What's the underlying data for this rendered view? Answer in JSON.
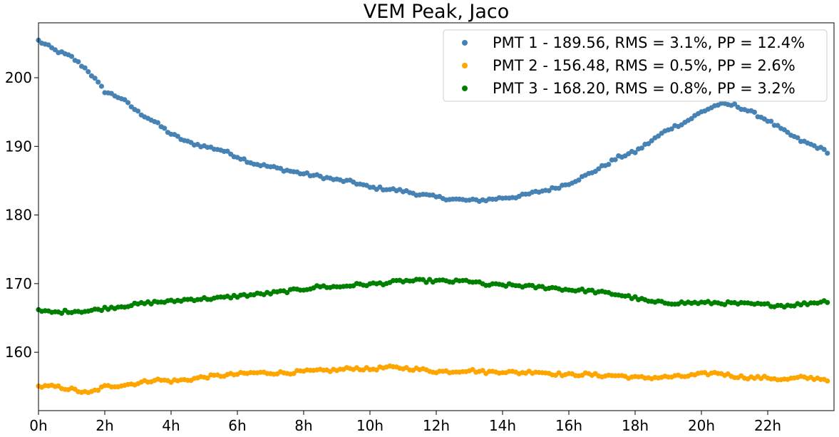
{
  "chart_data": {
    "type": "scatter",
    "title": "VEM Peak, Jaco",
    "xlabel": "",
    "ylabel": "",
    "xlim": [
      0,
      24
    ],
    "ylim": [
      151.5,
      208
    ],
    "x_ticks": [
      {
        "value": 0,
        "label": "0h"
      },
      {
        "value": 2,
        "label": "2h"
      },
      {
        "value": 4,
        "label": "4h"
      },
      {
        "value": 6,
        "label": "6h"
      },
      {
        "value": 8,
        "label": "8h"
      },
      {
        "value": 10,
        "label": "10h"
      },
      {
        "value": 12,
        "label": "12h"
      },
      {
        "value": 14,
        "label": "14h"
      },
      {
        "value": 16,
        "label": "16h"
      },
      {
        "value": 18,
        "label": "18h"
      },
      {
        "value": 20,
        "label": "20h"
      },
      {
        "value": 22,
        "label": "22h"
      }
    ],
    "y_ticks": [
      {
        "value": 160,
        "label": "160"
      },
      {
        "value": 170,
        "label": "170"
      },
      {
        "value": 180,
        "label": "180"
      },
      {
        "value": 190,
        "label": "190"
      },
      {
        "value": 200,
        "label": "200"
      }
    ],
    "grid": false,
    "legend_position": "top-right",
    "series": [
      {
        "name": "PMT 1 - 189.56, RMS = 3.1%, PP = 12.4%",
        "color": "#4682b4",
        "points": [
          [
            0.0,
            205.4
          ],
          [
            0.5,
            204.0
          ],
          [
            1.0,
            203.0
          ],
          [
            1.5,
            201.0
          ],
          [
            2.0,
            198.0
          ],
          [
            2.5,
            197.0
          ],
          [
            3.0,
            195.0
          ],
          [
            3.5,
            193.6
          ],
          [
            4.0,
            191.8
          ],
          [
            4.5,
            190.6
          ],
          [
            5.0,
            190.0
          ],
          [
            5.5,
            189.5
          ],
          [
            6.0,
            188.5
          ],
          [
            6.5,
            187.5
          ],
          [
            7.0,
            187.0
          ],
          [
            7.5,
            186.5
          ],
          [
            8.0,
            186.0
          ],
          [
            8.5,
            185.6
          ],
          [
            9.0,
            185.1
          ],
          [
            9.5,
            184.8
          ],
          [
            10.0,
            184.0
          ],
          [
            10.5,
            183.8
          ],
          [
            11.0,
            183.5
          ],
          [
            11.5,
            183.0
          ],
          [
            12.0,
            182.6
          ],
          [
            12.5,
            182.3
          ],
          [
            13.0,
            182.1
          ],
          [
            13.5,
            182.2
          ],
          [
            14.0,
            182.5
          ],
          [
            14.5,
            182.7
          ],
          [
            15.0,
            183.3
          ],
          [
            15.5,
            183.8
          ],
          [
            16.0,
            184.6
          ],
          [
            16.5,
            185.7
          ],
          [
            17.0,
            187.0
          ],
          [
            17.5,
            188.4
          ],
          [
            18.0,
            189.2
          ],
          [
            18.5,
            190.8
          ],
          [
            19.0,
            192.5
          ],
          [
            19.5,
            193.5
          ],
          [
            20.0,
            195.0
          ],
          [
            20.5,
            196.1
          ],
          [
            21.0,
            196.0
          ],
          [
            21.5,
            195.0
          ],
          [
            22.0,
            193.8
          ],
          [
            22.5,
            192.2
          ],
          [
            23.0,
            190.8
          ],
          [
            23.5,
            189.9
          ],
          [
            23.85,
            189.1
          ]
        ]
      },
      {
        "name": "PMT 2 - 156.48, RMS = 0.5%, PP = 2.6%",
        "color": "#ffa500",
        "points": [
          [
            0.0,
            155.0
          ],
          [
            0.5,
            155.0
          ],
          [
            1.0,
            154.6
          ],
          [
            1.5,
            154.0
          ],
          [
            2.0,
            155.0
          ],
          [
            2.5,
            155.2
          ],
          [
            3.0,
            155.5
          ],
          [
            3.5,
            156.0
          ],
          [
            4.0,
            155.8
          ],
          [
            4.5,
            156.0
          ],
          [
            5.0,
            156.4
          ],
          [
            5.5,
            156.6
          ],
          [
            6.0,
            156.8
          ],
          [
            6.5,
            157.0
          ],
          [
            7.0,
            157.0
          ],
          [
            7.5,
            157.0
          ],
          [
            8.0,
            157.2
          ],
          [
            8.5,
            157.3
          ],
          [
            9.0,
            157.4
          ],
          [
            9.5,
            157.7
          ],
          [
            10.0,
            157.5
          ],
          [
            10.5,
            157.8
          ],
          [
            11.0,
            157.7
          ],
          [
            11.5,
            157.5
          ],
          [
            12.0,
            157.2
          ],
          [
            12.5,
            157.2
          ],
          [
            13.0,
            157.4
          ],
          [
            13.5,
            157.1
          ],
          [
            14.0,
            157.2
          ],
          [
            14.5,
            157.0
          ],
          [
            15.0,
            157.2
          ],
          [
            15.5,
            156.9
          ],
          [
            16.0,
            156.7
          ],
          [
            16.5,
            156.8
          ],
          [
            17.0,
            156.6
          ],
          [
            17.5,
            156.6
          ],
          [
            18.0,
            156.3
          ],
          [
            18.5,
            156.3
          ],
          [
            19.0,
            156.4
          ],
          [
            19.5,
            156.5
          ],
          [
            20.0,
            156.8
          ],
          [
            20.5,
            157.0
          ],
          [
            21.0,
            156.5
          ],
          [
            21.5,
            156.3
          ],
          [
            22.0,
            156.3
          ],
          [
            22.5,
            156.0
          ],
          [
            23.0,
            156.3
          ],
          [
            23.5,
            156.2
          ],
          [
            23.85,
            156.0
          ]
        ]
      },
      {
        "name": "PMT 3 - 168.20, RMS = 0.8%, PP = 3.2%",
        "color": "#008000",
        "points": [
          [
            0.0,
            166.0
          ],
          [
            0.5,
            165.8
          ],
          [
            1.0,
            166.0
          ],
          [
            1.5,
            166.0
          ],
          [
            2.0,
            166.4
          ],
          [
            2.5,
            166.7
          ],
          [
            3.0,
            167.0
          ],
          [
            3.5,
            167.3
          ],
          [
            4.0,
            167.4
          ],
          [
            4.5,
            167.7
          ],
          [
            5.0,
            167.8
          ],
          [
            5.5,
            167.9
          ],
          [
            6.0,
            168.2
          ],
          [
            6.5,
            168.4
          ],
          [
            7.0,
            168.6
          ],
          [
            7.5,
            168.9
          ],
          [
            8.0,
            169.2
          ],
          [
            8.5,
            169.6
          ],
          [
            9.0,
            169.5
          ],
          [
            9.5,
            169.8
          ],
          [
            10.0,
            169.9
          ],
          [
            10.5,
            170.1
          ],
          [
            11.0,
            170.4
          ],
          [
            11.5,
            170.4
          ],
          [
            12.0,
            170.4
          ],
          [
            12.5,
            170.3
          ],
          [
            13.0,
            170.4
          ],
          [
            13.5,
            169.8
          ],
          [
            14.0,
            169.8
          ],
          [
            14.5,
            169.7
          ],
          [
            15.0,
            169.5
          ],
          [
            15.5,
            169.4
          ],
          [
            16.0,
            169.1
          ],
          [
            16.5,
            169.0
          ],
          [
            17.0,
            168.7
          ],
          [
            17.5,
            168.4
          ],
          [
            18.0,
            167.9
          ],
          [
            18.5,
            167.3
          ],
          [
            19.0,
            167.2
          ],
          [
            19.5,
            167.2
          ],
          [
            20.0,
            167.2
          ],
          [
            20.5,
            167.2
          ],
          [
            21.0,
            167.1
          ],
          [
            21.5,
            167.0
          ],
          [
            22.0,
            166.9
          ],
          [
            22.5,
            166.8
          ],
          [
            23.0,
            167.0
          ],
          [
            23.5,
            167.3
          ],
          [
            23.85,
            167.5
          ]
        ]
      }
    ]
  }
}
